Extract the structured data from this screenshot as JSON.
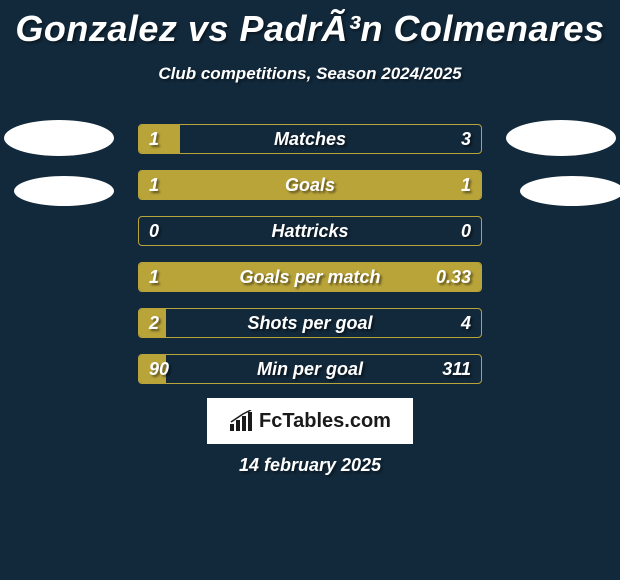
{
  "title": "Gonzalez vs PadrÃ³n Colmenares",
  "subtitle": "Club competitions, Season 2024/2025",
  "colors": {
    "background": "#12293b",
    "bar_fill": "#b9a43a",
    "bar_border": "#b9a43a",
    "text": "#ffffff",
    "branding_bg": "#ffffff",
    "branding_text": "#1a1a1a"
  },
  "bars": [
    {
      "label": "Matches",
      "left_val": "1",
      "right_val": "3",
      "left_pct": 12,
      "right_pct": 0
    },
    {
      "label": "Goals",
      "left_val": "1",
      "right_val": "1",
      "left_pct": 100,
      "right_pct": 0
    },
    {
      "label": "Hattricks",
      "left_val": "0",
      "right_val": "0",
      "left_pct": 0,
      "right_pct": 0
    },
    {
      "label": "Goals per match",
      "left_val": "1",
      "right_val": "0.33",
      "left_pct": 100,
      "right_pct": 0
    },
    {
      "label": "Shots per goal",
      "left_val": "2",
      "right_val": "4",
      "left_pct": 8,
      "right_pct": 0
    },
    {
      "label": "Min per goal",
      "left_val": "90",
      "right_val": "311",
      "left_pct": 8,
      "right_pct": 0
    }
  ],
  "branding": "FcTables.com",
  "date": "14 february 2025"
}
